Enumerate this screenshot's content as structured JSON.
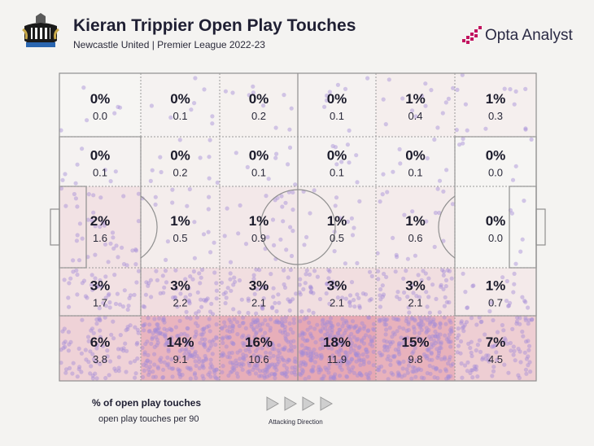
{
  "header": {
    "title": "Kieran Trippier Open Play Touches",
    "subtitle": "Newcastle United | Premier League 2022-23",
    "brand": "Opta Analyst"
  },
  "legend": {
    "main": "% of open play touches",
    "sub": "open play touches per 90",
    "direction": "Attacking Direction"
  },
  "colors": {
    "background": "#f4f3f1",
    "low": "#f6f5f3",
    "high": "#e6a8b4",
    "dots": "#a58bd6",
    "lines": "#8f8f8f",
    "brand_accent": "#c2135f"
  },
  "chart_data": {
    "type": "heatmap",
    "title": "Kieran Trippier Open Play Touches",
    "subtitle": "Newcastle United | Premier League 2022-23",
    "rows": 5,
    "cols": 6,
    "cells": [
      [
        {
          "pct": "0%",
          "value": 0.0
        },
        {
          "pct": "0%",
          "value": 0.1
        },
        {
          "pct": "0%",
          "value": 0.2
        },
        {
          "pct": "0%",
          "value": 0.1
        },
        {
          "pct": "1%",
          "value": 0.4
        },
        {
          "pct": "1%",
          "value": 0.3
        }
      ],
      [
        {
          "pct": "0%",
          "value": 0.1
        },
        {
          "pct": "0%",
          "value": 0.2
        },
        {
          "pct": "0%",
          "value": 0.1
        },
        {
          "pct": "0%",
          "value": 0.1
        },
        {
          "pct": "0%",
          "value": 0.1
        },
        {
          "pct": "0%",
          "value": 0.0
        }
      ],
      [
        {
          "pct": "2%",
          "value": 1.6
        },
        {
          "pct": "1%",
          "value": 0.5
        },
        {
          "pct": "1%",
          "value": 0.9
        },
        {
          "pct": "1%",
          "value": 0.5
        },
        {
          "pct": "1%",
          "value": 0.6
        },
        {
          "pct": "0%",
          "value": 0.0
        }
      ],
      [
        {
          "pct": "3%",
          "value": 1.7
        },
        {
          "pct": "3%",
          "value": 2.2
        },
        {
          "pct": "3%",
          "value": 2.1
        },
        {
          "pct": "3%",
          "value": 2.1
        },
        {
          "pct": "3%",
          "value": 2.1
        },
        {
          "pct": "1%",
          "value": 0.7
        }
      ],
      [
        {
          "pct": "6%",
          "value": 3.8
        },
        {
          "pct": "14%",
          "value": 9.1
        },
        {
          "pct": "16%",
          "value": 10.6
        },
        {
          "pct": "18%",
          "value": 11.9
        },
        {
          "pct": "15%",
          "value": 9.8
        },
        {
          "pct": "7%",
          "value": 4.5
        }
      ]
    ],
    "legend": [
      "% of open play touches",
      "open play touches per 90"
    ],
    "direction": "left-to-right"
  }
}
